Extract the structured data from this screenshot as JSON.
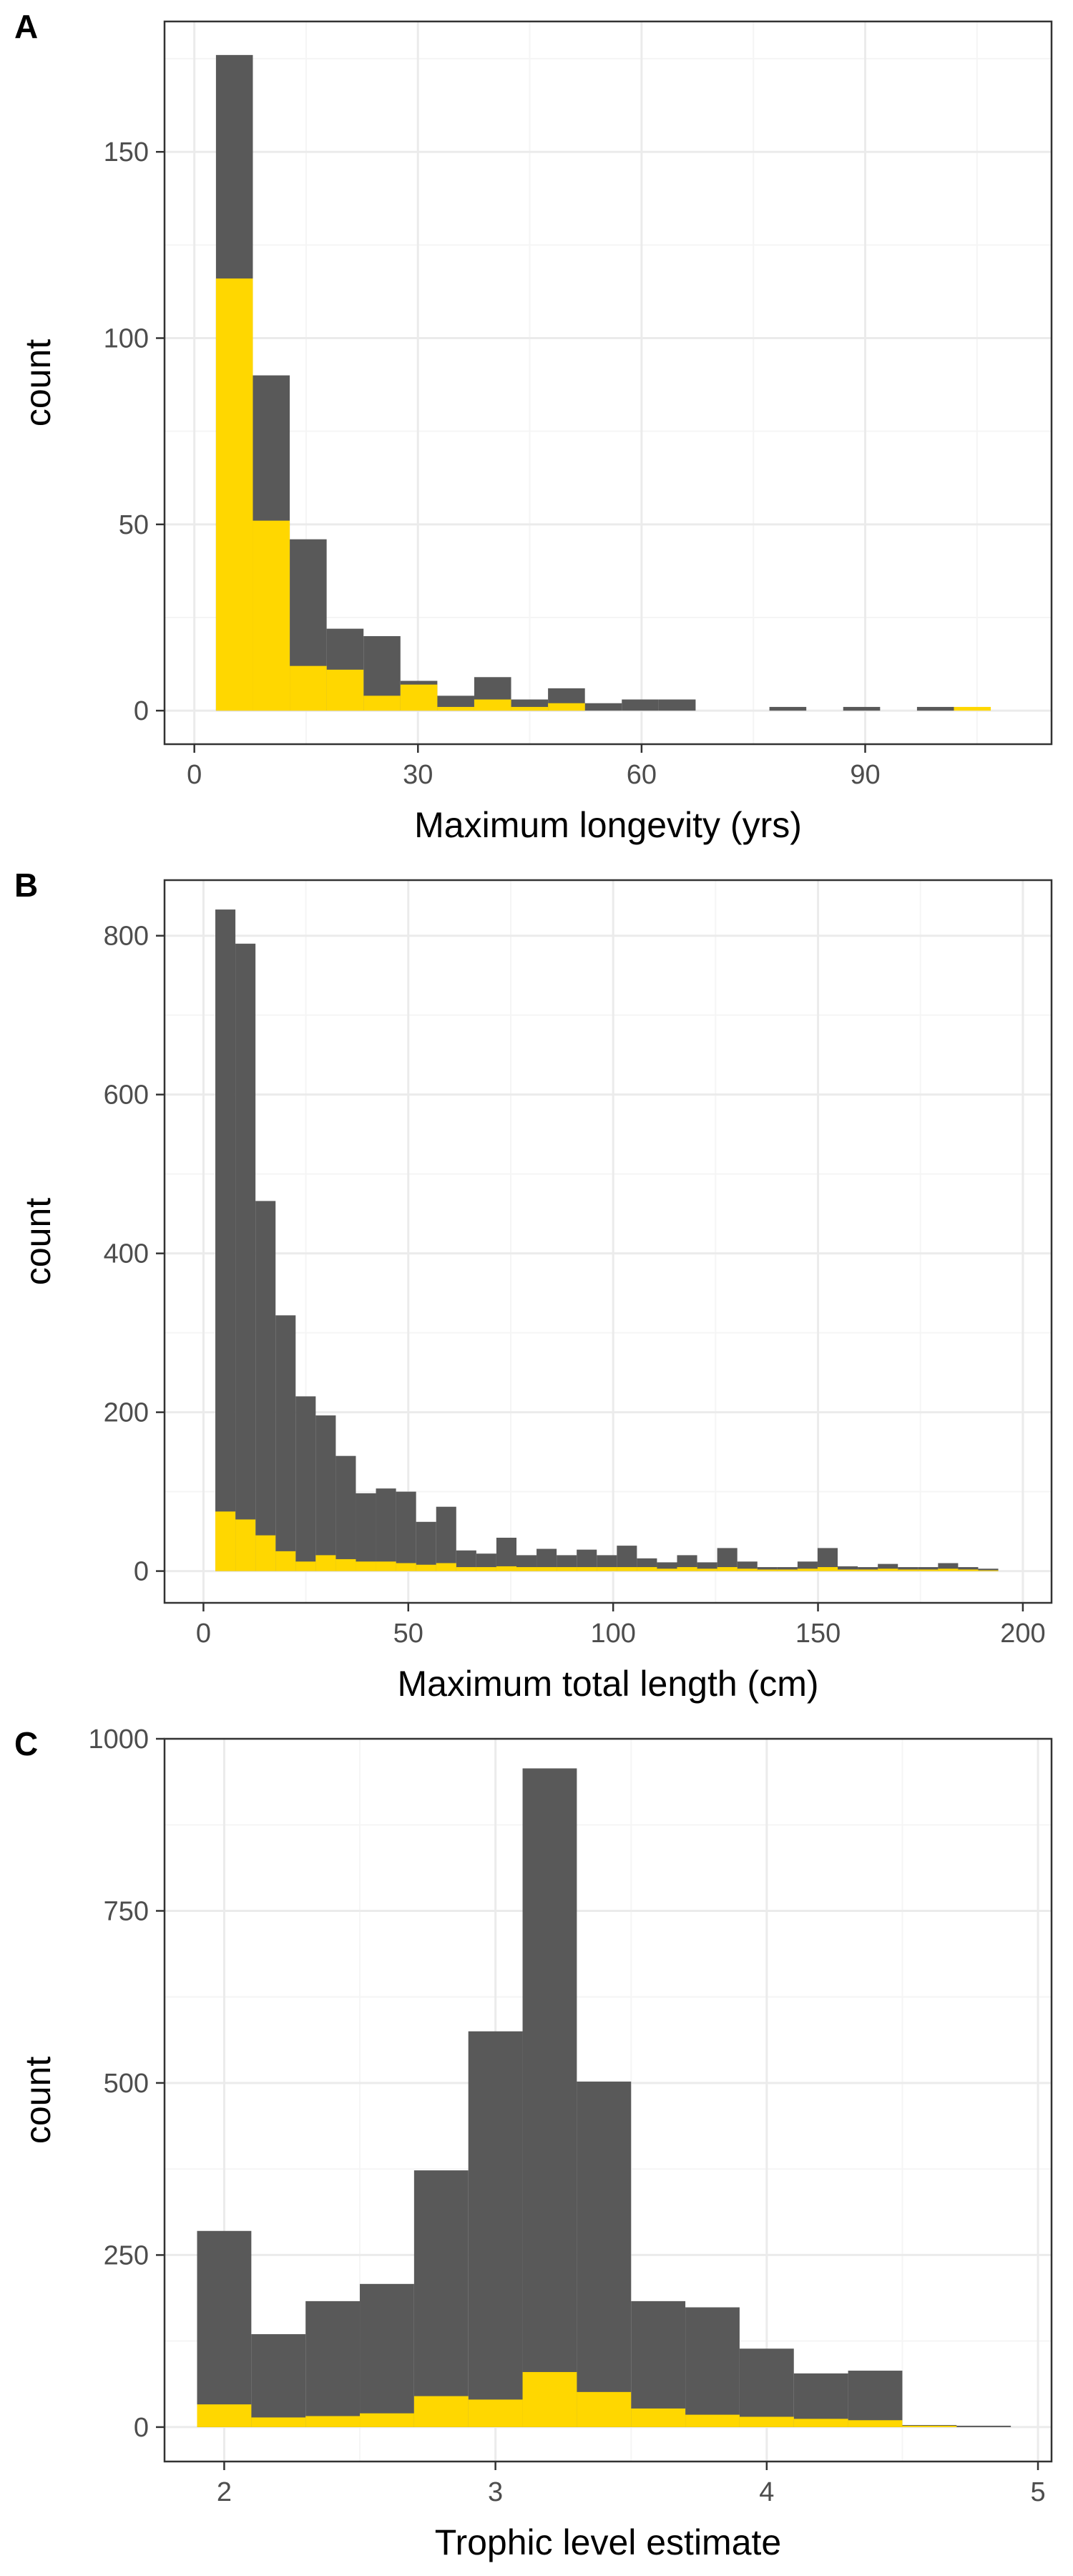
{
  "colors": {
    "total": "#595959",
    "highlight": "#FFD700",
    "grid_major": "#EBEBEB",
    "grid_minor": "#F5F5F5",
    "axis_text": "#4D4D4D"
  },
  "chart_data": [
    {
      "panel": "A",
      "type": "bar",
      "xlabel": "Maximum longevity (yrs)",
      "ylabel": "count",
      "xlim": [
        -4,
        115
      ],
      "ylim": [
        -9,
        185
      ],
      "xticks": [
        0,
        30,
        60,
        90
      ],
      "yticks": [
        0,
        50,
        100,
        150
      ],
      "bin_width": 4.95,
      "bin_start": 2.9,
      "series": [
        {
          "values": [
            176,
            90,
            46,
            22,
            20,
            8,
            4,
            9,
            3,
            6,
            2,
            3,
            3,
            0,
            0,
            1,
            0,
            1,
            0,
            1,
            0
          ]
        },
        {
          "values": [
            116,
            51,
            12,
            11,
            4,
            7,
            1,
            3,
            1,
            2,
            0,
            0,
            0,
            0,
            0,
            0,
            0,
            0,
            0,
            0,
            1
          ]
        }
      ]
    },
    {
      "panel": "B",
      "type": "bar",
      "xlabel": "Maximum total length (cm)",
      "ylabel": "count",
      "xlim": [
        -9.5,
        207
      ],
      "ylim": [
        -40,
        870
      ],
      "xticks": [
        0,
        50,
        100,
        150,
        200
      ],
      "yticks": [
        0,
        200,
        400,
        600,
        800
      ],
      "bin_width": 4.9,
      "bin_start": 2.9,
      "series": [
        {
          "values": [
            833,
            790,
            466,
            322,
            220,
            196,
            145,
            98,
            104,
            100,
            62,
            81,
            26,
            22,
            42,
            20,
            28,
            20,
            27,
            20,
            32,
            16,
            11,
            20,
            11,
            29,
            12,
            5,
            5,
            12,
            29,
            6,
            5,
            9,
            5,
            5,
            10,
            5,
            3
          ]
        },
        {
          "values": [
            75,
            65,
            45,
            25,
            12,
            20,
            15,
            12,
            12,
            10,
            8,
            10,
            5,
            5,
            6,
            5,
            5,
            5,
            5,
            5,
            5,
            5,
            3,
            5,
            3,
            5,
            3,
            2,
            2,
            3,
            5,
            2,
            2,
            3,
            2,
            2,
            3,
            2,
            1
          ]
        }
      ]
    },
    {
      "panel": "C",
      "type": "bar",
      "xlabel": "Trophic level estimate",
      "ylabel": "count",
      "xlim": [
        1.78,
        5.05
      ],
      "ylim": [
        -50,
        1000
      ],
      "xticks": [
        2,
        3,
        4,
        5
      ],
      "yticks": [
        0,
        250,
        500,
        750,
        1000
      ],
      "bin_width": 0.2,
      "bin_start": 1.9,
      "series": [
        {
          "values": [
            285,
            135,
            183,
            208,
            373,
            575,
            957,
            502,
            183,
            174,
            114,
            78,
            82,
            3,
            2
          ]
        },
        {
          "values": [
            33,
            14,
            16,
            20,
            45,
            40,
            80,
            51,
            27,
            18,
            15,
            12,
            10,
            2,
            0
          ]
        }
      ]
    }
  ]
}
